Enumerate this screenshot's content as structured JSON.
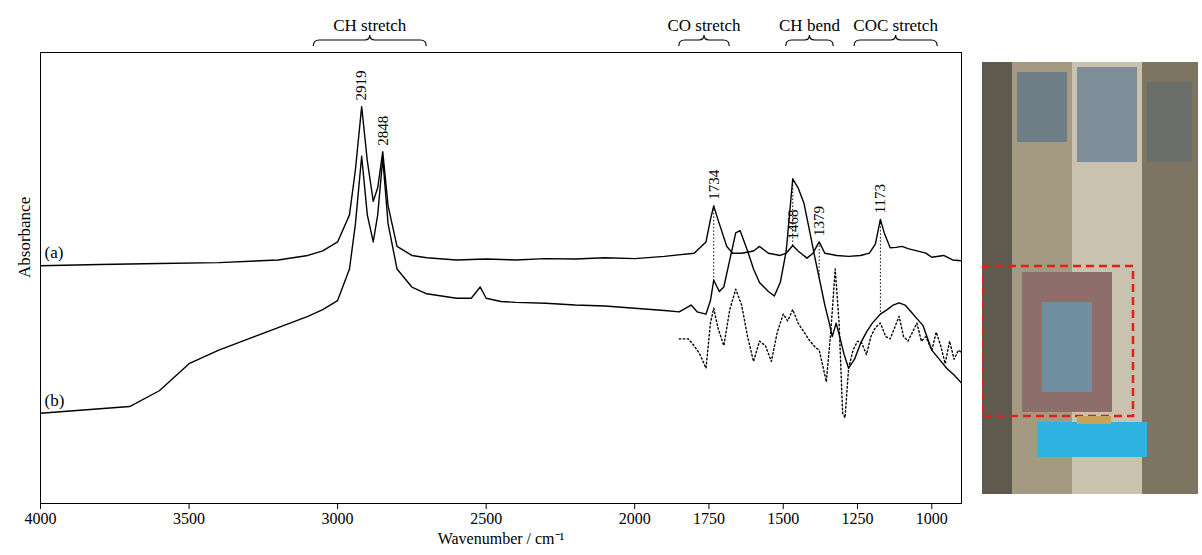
{
  "chart_data": {
    "type": "line",
    "x_label": "Wavenumber / cm⁻¹",
    "y_label": "Absorbance",
    "xlim": [
      4000,
      900
    ],
    "xticks": [
      4000,
      3500,
      3000,
      2500,
      2000,
      1750,
      1500,
      1250,
      1000
    ],
    "ylim": [
      0,
      100
    ],
    "tick_labels": "x",
    "grid": false,
    "series": [
      {
        "name": "(a)",
        "color": "#000000",
        "line_style": "solid",
        "x": [
          4000,
          3800,
          3600,
          3400,
          3200,
          3100,
          3050,
          3000,
          2960,
          2940,
          2919,
          2900,
          2880,
          2865,
          2848,
          2830,
          2800,
          2750,
          2700,
          2600,
          2500,
          2400,
          2300,
          2200,
          2100,
          2000,
          1900,
          1800,
          1760,
          1745,
          1734,
          1720,
          1710,
          1690,
          1670,
          1640,
          1600,
          1580,
          1550,
          1510,
          1490,
          1468,
          1450,
          1420,
          1400,
          1379,
          1360,
          1320,
          1280,
          1240,
          1210,
          1190,
          1173,
          1160,
          1140,
          1120,
          1100,
          1080,
          1050,
          1020,
          1000,
          960,
          930,
          900
        ],
        "values": [
          52.7,
          53,
          53.2,
          53.4,
          54,
          55,
          56,
          58,
          64,
          74,
          88,
          76,
          67,
          70,
          78,
          66,
          57,
          55,
          54.5,
          54,
          54.2,
          54,
          54.3,
          54.2,
          54.5,
          54.3,
          54.8,
          55.5,
          58,
          63,
          66,
          63,
          61,
          57,
          55.5,
          55.5,
          56,
          57,
          55.5,
          55,
          55.5,
          57.2,
          56,
          54.4,
          55.5,
          58,
          55.5,
          55,
          54.8,
          55,
          55.5,
          57.5,
          63,
          60,
          56.7,
          56.8,
          57,
          56.5,
          56,
          55.5,
          54.6,
          55,
          54,
          53.8
        ]
      },
      {
        "name": "(b)",
        "color": "#000000",
        "line_style": "solid",
        "x": [
          4000,
          3900,
          3800,
          3700,
          3600,
          3500,
          3400,
          3300,
          3200,
          3100,
          3050,
          3000,
          2960,
          2940,
          2919,
          2900,
          2880,
          2865,
          2848,
          2830,
          2800,
          2750,
          2700,
          2600,
          2550,
          2520,
          2500,
          2450,
          2400,
          2300,
          2200,
          2100,
          2000,
          1900,
          1850,
          1810,
          1790,
          1760,
          1745,
          1734,
          1715,
          1700,
          1680,
          1660,
          1645,
          1620,
          1600,
          1580,
          1550,
          1530,
          1510,
          1490,
          1468,
          1450,
          1430,
          1410,
          1395,
          1379,
          1360,
          1345,
          1335,
          1322,
          1310,
          1295,
          1280,
          1260,
          1240,
          1220,
          1200,
          1173,
          1150,
          1130,
          1110,
          1090,
          1070,
          1050,
          1030,
          1000,
          975,
          950,
          925,
          900
        ],
        "values": [
          20,
          20.5,
          21,
          21.5,
          25,
          31,
          34,
          36.5,
          39,
          41.5,
          43,
          45,
          52,
          62,
          77,
          64,
          58,
          64,
          76.5,
          62,
          52,
          48,
          46.5,
          45.5,
          45.5,
          48,
          45.5,
          44.8,
          44.6,
          44.4,
          44,
          43.8,
          43.3,
          42.8,
          42.5,
          44,
          42.5,
          42,
          45,
          49.5,
          47,
          48,
          54,
          60,
          60.5,
          56,
          52,
          49,
          47,
          46,
          49,
          56,
          72,
          70,
          66.5,
          60,
          55,
          50,
          44,
          40,
          37,
          40,
          37,
          33,
          30,
          32,
          35.5,
          38,
          40,
          42,
          43,
          44,
          44.5,
          44,
          42.5,
          41,
          39.5,
          34,
          32,
          30,
          28.5,
          26.7
        ]
      },
      {
        "color": "#000000",
        "line_style": "dotted",
        "x": [
          1850,
          1820,
          1800,
          1780,
          1760,
          1745,
          1734,
          1720,
          1700,
          1680,
          1660,
          1640,
          1620,
          1600,
          1580,
          1560,
          1540,
          1520,
          1500,
          1485,
          1468,
          1450,
          1430,
          1410,
          1390,
          1379,
          1365,
          1355,
          1340,
          1325,
          1312,
          1300,
          1292,
          1280,
          1265,
          1250,
          1235,
          1220,
          1205,
          1190,
          1173,
          1155,
          1140,
          1125,
          1110,
          1095,
          1080,
          1065,
          1050,
          1035,
          1020,
          1000,
          985,
          970,
          955,
          940,
          925,
          910,
          900
        ],
        "values": [
          36.5,
          36.5,
          35,
          33,
          30,
          40,
          43.3,
          39,
          35,
          43,
          47.5,
          44,
          37,
          31.5,
          36,
          35,
          31.5,
          38,
          42,
          40.5,
          43,
          40,
          38,
          36,
          34.5,
          34,
          30,
          27,
          38,
          52,
          40,
          20,
          19,
          30,
          34,
          36,
          35.5,
          33,
          37,
          39,
          40,
          37,
          36.5,
          39,
          41.5,
          37,
          36,
          38,
          40,
          36,
          37,
          34,
          38,
          35,
          31,
          36,
          32,
          34,
          33.5
        ]
      }
    ],
    "peaks": [
      2919,
      2848,
      1734,
      1468,
      1379,
      1173
    ],
    "peak_lines": [
      1734,
      1468,
      1379,
      1173
    ],
    "regions": [
      {
        "label": "CH stretch",
        "x": [
          3080,
          2700
        ]
      },
      {
        "label": "CO stretch",
        "x": [
          1850,
          1680
        ]
      },
      {
        "label": "CH bend",
        "x": [
          1490,
          1330
        ]
      },
      {
        "label": "COC stretch",
        "x": [
          1260,
          980
        ]
      }
    ]
  }
}
